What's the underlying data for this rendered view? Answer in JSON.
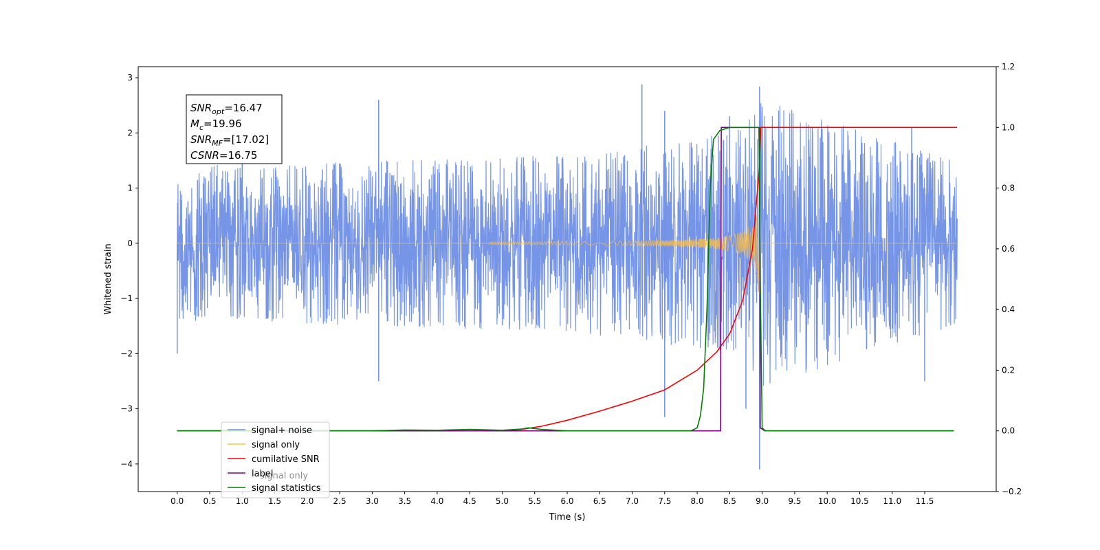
{
  "chart_data": {
    "type": "line",
    "xlabel": "Time (s)",
    "ylabel": "Whitened strain",
    "xlim": [
      -0.6,
      12.6
    ],
    "ylim": [
      -4.5,
      3.2
    ],
    "y2lim": [
      -0.2,
      1.2
    ],
    "x_ticks": [
      "0.0",
      "0.5",
      "1.0",
      "1.5",
      "2.0",
      "2.5",
      "3.0",
      "3.5",
      "4.0",
      "4.5",
      "5.0",
      "5.5",
      "6.0",
      "6.5",
      "7.0",
      "7.5",
      "8.0",
      "8.5",
      "9.0",
      "9.5",
      "10.0",
      "10.5",
      "11.0",
      "11.5"
    ],
    "y_ticks": [
      "3",
      "2",
      "1",
      "0",
      "−1",
      "−2",
      "−3",
      "−4"
    ],
    "y2_ticks": [
      "1.2",
      "1.0",
      "0.8",
      "0.6",
      "0.4",
      "0.2",
      "0.0",
      "−0.2"
    ],
    "legend_position": "lower-left",
    "annotation_box": {
      "position": "top-left",
      "lines": [
        {
          "label": "SNR",
          "sub": "opt",
          "value": "=16.47"
        },
        {
          "label": "M",
          "sub": "c",
          "value": "=19.96"
        },
        {
          "label": "SNR",
          "sub": "MF",
          "value": "=[17.02]"
        },
        {
          "label": "CSNR",
          "sub": "",
          "value": "=16.75"
        }
      ]
    },
    "legend": [
      {
        "label": "signal+ noise",
        "color": "#6f8fe6"
      },
      {
        "label": "signal only",
        "color": "#ffbf40"
      },
      {
        "label": "cumilative SNR",
        "color": "#ff0000"
      },
      {
        "label": "label",
        "color": "#800080"
      },
      {
        "label": "signal statistics",
        "color": "#008000"
      }
    ],
    "hidden_legend_text": "signal only",
    "series": [
      {
        "name": "signal+ noise",
        "axis": "left",
        "color": "#6f8fe6",
        "x_range": [
          0.0,
          12.0
        ],
        "noise_envelope": [
          [
            0.0,
            1.4
          ],
          [
            3.0,
            1.5
          ],
          [
            6.0,
            1.6
          ],
          [
            8.5,
            2.0
          ],
          [
            9.0,
            2.6
          ],
          [
            12.0,
            1.5
          ]
        ],
        "spikes": [
          [
            0.0,
            -2.0
          ],
          [
            1.0,
            1.7
          ],
          [
            3.1,
            2.6
          ],
          [
            3.1,
            -2.5
          ],
          [
            7.15,
            2.88
          ],
          [
            7.5,
            2.4
          ],
          [
            7.5,
            -3.15
          ],
          [
            8.5,
            2.3
          ],
          [
            8.75,
            -3.0
          ],
          [
            8.96,
            2.84
          ],
          [
            8.96,
            -4.1
          ],
          [
            11.3,
            2.1
          ],
          [
            11.5,
            -2.5
          ]
        ]
      },
      {
        "name": "signal only",
        "axis": "left",
        "color": "#ffbf40",
        "x_range": [
          0.0,
          12.0
        ],
        "chirp_start": 4.8,
        "merger_time": 8.96,
        "peak_amplitude": 1.0
      },
      {
        "name": "cumilative SNR",
        "axis": "right",
        "color": "#ff0000",
        "points": [
          [
            0.0,
            0.0
          ],
          [
            5.0,
            0.0
          ],
          [
            5.3,
            0.005
          ],
          [
            5.6,
            0.015
          ],
          [
            6.0,
            0.035
          ],
          [
            6.5,
            0.065
          ],
          [
            7.0,
            0.098
          ],
          [
            7.5,
            0.135
          ],
          [
            8.0,
            0.2
          ],
          [
            8.3,
            0.26
          ],
          [
            8.5,
            0.32
          ],
          [
            8.7,
            0.43
          ],
          [
            8.85,
            0.6
          ],
          [
            8.95,
            0.85
          ],
          [
            8.98,
            1.0
          ],
          [
            12.0,
            1.0
          ]
        ]
      },
      {
        "name": "label",
        "axis": "right",
        "color": "#800080",
        "points": [
          [
            0.0,
            0.0
          ],
          [
            8.36,
            0.0
          ],
          [
            8.37,
            1.0
          ],
          [
            8.96,
            1.0
          ],
          [
            8.97,
            0.01
          ],
          [
            9.04,
            0.0
          ],
          [
            11.95,
            0.0
          ]
        ]
      },
      {
        "name": "signal statistics",
        "axis": "right",
        "color": "#008000",
        "points": [
          [
            0.0,
            0.0
          ],
          [
            3.0,
            0.0
          ],
          [
            3.5,
            0.003
          ],
          [
            4.0,
            0.002
          ],
          [
            4.5,
            0.005
          ],
          [
            5.0,
            0.002
          ],
          [
            5.3,
            0.006
          ],
          [
            5.4,
            0.01
          ],
          [
            5.6,
            0.005
          ],
          [
            6.0,
            0.0
          ],
          [
            7.9,
            0.0
          ],
          [
            8.0,
            0.01
          ],
          [
            8.05,
            0.05
          ],
          [
            8.1,
            0.14
          ],
          [
            8.15,
            0.4
          ],
          [
            8.2,
            0.8
          ],
          [
            8.25,
            0.96
          ],
          [
            8.35,
            0.99
          ],
          [
            8.5,
            1.0
          ],
          [
            8.95,
            1.0
          ],
          [
            8.97,
            0.5
          ],
          [
            9.0,
            0.01
          ],
          [
            9.05,
            0.0
          ],
          [
            11.95,
            0.0
          ]
        ]
      }
    ]
  }
}
